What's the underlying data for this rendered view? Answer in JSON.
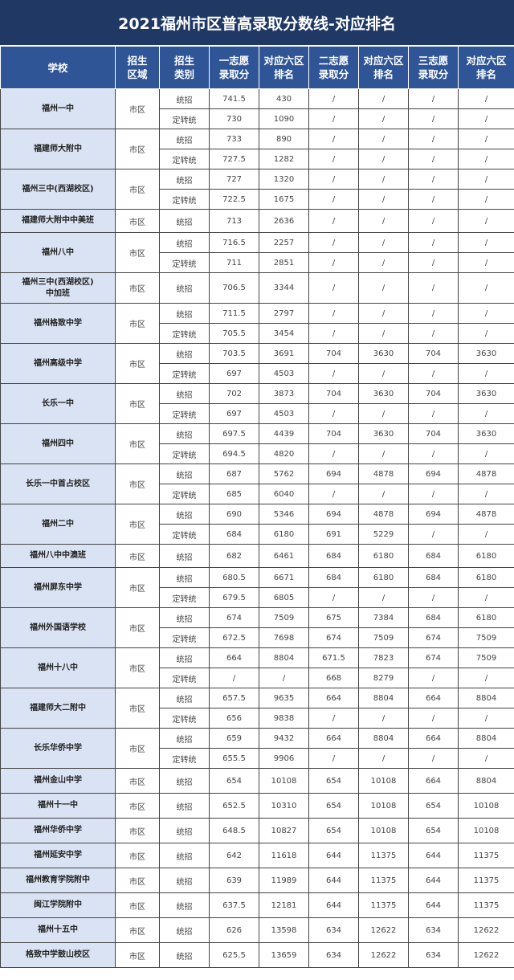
{
  "title": "2021福州市区普高录取分数线-对应排名",
  "headers": [
    "学校",
    "招生\n区域",
    "招生\n类别",
    "一志愿\n录取分",
    "对应六区\n排名",
    "二志愿\n录取分",
    "对应六区\n排名",
    "三志愿\n录取分",
    "对应六区\n排名"
  ],
  "schools": [
    {
      "name": "福州一中",
      "area": "市区",
      "rows": [
        [
          "统招",
          "741.5",
          "430",
          "/",
          "/",
          "/",
          "/"
        ],
        [
          "定转统",
          "730",
          "1090",
          "/",
          "/",
          "/",
          "/"
        ]
      ]
    },
    {
      "name": "福建师大附中",
      "area": "市区",
      "rows": [
        [
          "统招",
          "733",
          "890",
          "/",
          "/",
          "/",
          "/"
        ],
        [
          "定转统",
          "727.5",
          "1282",
          "/",
          "/",
          "/",
          "/"
        ]
      ]
    },
    {
      "name": "福州三中(西湖校区)",
      "area": "市区",
      "rows": [
        [
          "统招",
          "727",
          "1320",
          "/",
          "/",
          "/",
          "/"
        ],
        [
          "定转统",
          "722.5",
          "1675",
          "/",
          "/",
          "/",
          "/"
        ]
      ]
    },
    {
      "name": "福建师大附中中美班",
      "area": "市区",
      "rows": [
        [
          "统招",
          "713",
          "2636",
          "/",
          "/",
          "/",
          "/"
        ]
      ]
    },
    {
      "name": "福州八中",
      "area": "市区",
      "rows": [
        [
          "统招",
          "716.5",
          "2257",
          "/",
          "/",
          "/",
          "/"
        ],
        [
          "定转统",
          "711",
          "2851",
          "/",
          "/",
          "/",
          "/"
        ]
      ]
    },
    {
      "name": "福州三中(西湖校区)\n中加班",
      "area": "市区",
      "rows": [
        [
          "统招",
          "706.5",
          "3344",
          "/",
          "/",
          "/",
          "/"
        ]
      ]
    },
    {
      "name": "福州格致中学",
      "area": "市区",
      "rows": [
        [
          "统招",
          "711.5",
          "2797",
          "/",
          "/",
          "/",
          "/"
        ],
        [
          "定转统",
          "705.5",
          "3454",
          "/",
          "/",
          "/",
          "/"
        ]
      ]
    },
    {
      "name": "福州高级中学",
      "area": "市区",
      "rows": [
        [
          "统招",
          "703.5",
          "3691",
          "704",
          "3630",
          "704",
          "3630"
        ],
        [
          "定转统",
          "697",
          "4503",
          "/",
          "/",
          "/",
          "/"
        ]
      ]
    },
    {
      "name": "长乐一中",
      "area": "市区",
      "rows": [
        [
          "统招",
          "702",
          "3873",
          "704",
          "3630",
          "704",
          "3630"
        ],
        [
          "定转统",
          "697",
          "4503",
          "/",
          "/",
          "/",
          "/"
        ]
      ]
    },
    {
      "name": "福州四中",
      "area": "市区",
      "rows": [
        [
          "统招",
          "697.5",
          "4439",
          "704",
          "3630",
          "704",
          "3630"
        ],
        [
          "定转统",
          "694.5",
          "4820",
          "/",
          "/",
          "/",
          "/"
        ]
      ]
    },
    {
      "name": "长乐一中首占校区",
      "area": "市区",
      "rows": [
        [
          "统招",
          "687",
          "5762",
          "694",
          "4878",
          "694",
          "4878"
        ],
        [
          "定转统",
          "685",
          "6040",
          "/",
          "/",
          "/",
          "/"
        ]
      ]
    },
    {
      "name": "福州二中",
      "area": "市区",
      "rows": [
        [
          "统招",
          "690",
          "5346",
          "694",
          "4878",
          "694",
          "4878"
        ],
        [
          "定转统",
          "684",
          "6180",
          "691",
          "5229",
          "/",
          "/"
        ]
      ]
    },
    {
      "name": "福州八中中澳班",
      "area": "市区",
      "rows": [
        [
          "统招",
          "682",
          "6461",
          "684",
          "6180",
          "684",
          "6180"
        ]
      ]
    },
    {
      "name": "福州屏东中学",
      "area": "市区",
      "rows": [
        [
          "统招",
          "680.5",
          "6671",
          "684",
          "6180",
          "684",
          "6180"
        ],
        [
          "定转统",
          "679.5",
          "6805",
          "/",
          "/",
          "/",
          "/"
        ]
      ]
    },
    {
      "name": "福州外国语学校",
      "area": "市区",
      "rows": [
        [
          "统招",
          "674",
          "7509",
          "675",
          "7384",
          "684",
          "6180"
        ],
        [
          "定转统",
          "672.5",
          "7698",
          "674",
          "7509",
          "674",
          "7509"
        ]
      ]
    },
    {
      "name": "福州十八中",
      "area": "市区",
      "rows": [
        [
          "统招",
          "664",
          "8804",
          "671.5",
          "7823",
          "674",
          "7509"
        ],
        [
          "定转统",
          "/",
          "/",
          "668",
          "8279",
          "/",
          "/"
        ]
      ]
    },
    {
      "name": "福建师大二附中",
      "area": "市区",
      "rows": [
        [
          "统招",
          "657.5",
          "9635",
          "664",
          "8804",
          "664",
          "8804"
        ],
        [
          "定转统",
          "656",
          "9838",
          "/",
          "/",
          "/",
          "/"
        ]
      ]
    },
    {
      "name": "长乐华侨中学",
      "area": "市区",
      "rows": [
        [
          "统招",
          "659",
          "9432",
          "664",
          "8804",
          "664",
          "8804"
        ],
        [
          "定转统",
          "655.5",
          "9906",
          "/",
          "/",
          "/",
          "/"
        ]
      ]
    },
    {
      "name": "福州金山中学",
      "area": "市区",
      "rows": [
        [
          "统招",
          "654",
          "10108",
          "654",
          "10108",
          "664",
          "8804"
        ]
      ]
    },
    {
      "name": "福州十一中",
      "area": "市区",
      "rows": [
        [
          "统招",
          "652.5",
          "10310",
          "654",
          "10108",
          "654",
          "10108"
        ]
      ]
    },
    {
      "name": "福州华侨中学",
      "area": "市区",
      "rows": [
        [
          "统招",
          "648.5",
          "10827",
          "654",
          "10108",
          "654",
          "10108"
        ]
      ]
    },
    {
      "name": "福州延安中学",
      "area": "市区",
      "rows": [
        [
          "统招",
          "642",
          "11618",
          "644",
          "11375",
          "644",
          "11375"
        ]
      ]
    },
    {
      "name": "福州教育学院附中",
      "area": "市区",
      "rows": [
        [
          "统招",
          "639",
          "11989",
          "644",
          "11375",
          "644",
          "11375"
        ]
      ]
    },
    {
      "name": "闽江学院附中",
      "area": "市区",
      "rows": [
        [
          "统招",
          "637.5",
          "12181",
          "644",
          "11375",
          "644",
          "11375"
        ]
      ]
    },
    {
      "name": "福州十五中",
      "area": "市区",
      "rows": [
        [
          "统招",
          "626",
          "13598",
          "634",
          "12622",
          "634",
          "12622"
        ]
      ]
    },
    {
      "name": "格致中学鼓山校区",
      "area": "市区",
      "rows": [
        [
          "统招",
          "625.5",
          "13659",
          "634",
          "12622",
          "634",
          "12622"
        ]
      ]
    }
  ]
}
